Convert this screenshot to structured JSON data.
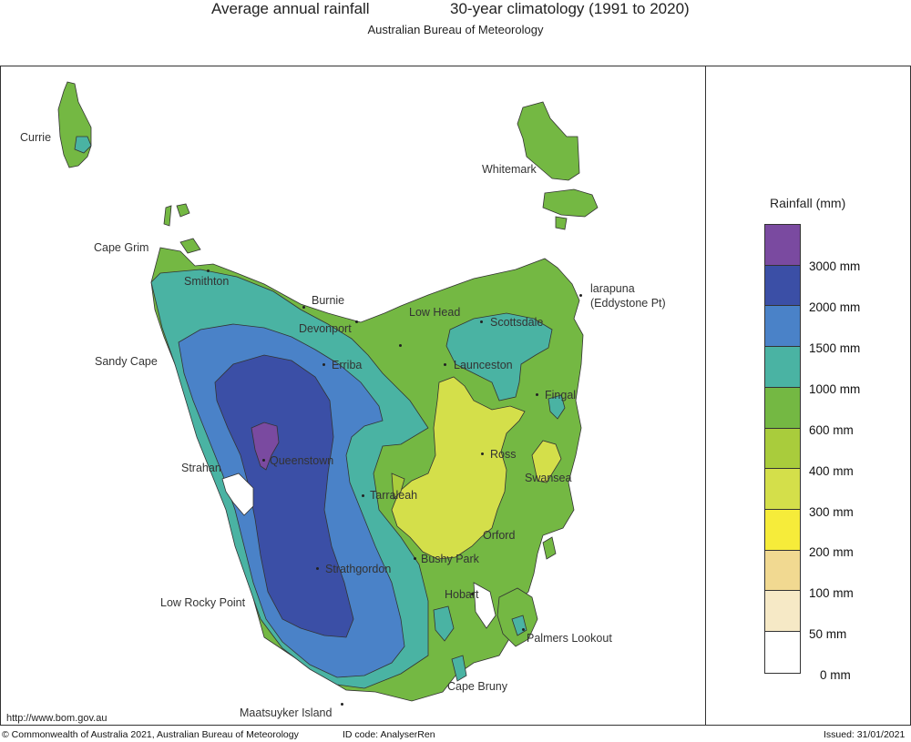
{
  "header": {
    "title": "Average annual rainfall",
    "period": "30-year climatology (1991 to 2020)",
    "subtitle": "Australian Bureau of Meteorology"
  },
  "legend": {
    "title": "Rainfall (mm)",
    "bands": [
      {
        "label": "",
        "color": "#7a4aa0"
      },
      {
        "label": "3000 mm",
        "color": "#3b4fa6"
      },
      {
        "label": "2000 mm",
        "color": "#4a82c8"
      },
      {
        "label": "1500 mm",
        "color": "#4ab3a3"
      },
      {
        "label": "1000 mm",
        "color": "#74b843"
      },
      {
        "label": "600 mm",
        "color": "#a9cc3c"
      },
      {
        "label": "400 mm",
        "color": "#d4df4a"
      },
      {
        "label": "300 mm",
        "color": "#f6ec3a"
      },
      {
        "label": "200 mm",
        "color": "#f1d991"
      },
      {
        "label": "100 mm",
        "color": "#f6e9c6"
      },
      {
        "label": "50 mm",
        "color": "#ffffff"
      }
    ],
    "bottom_label": "0 mm"
  },
  "places": [
    {
      "id": "currie",
      "name": "Currie"
    },
    {
      "id": "whitemark",
      "name": "Whitemark"
    },
    {
      "id": "cape-grim",
      "name": "Cape Grim"
    },
    {
      "id": "smithton",
      "name": "Smithton"
    },
    {
      "id": "burnie",
      "name": "Burnie"
    },
    {
      "id": "devonport",
      "name": "Devonport"
    },
    {
      "id": "low-head",
      "name": "Low Head"
    },
    {
      "id": "scottsdale",
      "name": "Scottsdale"
    },
    {
      "id": "larapuna",
      "name": "larapuna"
    },
    {
      "id": "eddystone",
      "name": "(Eddystone Pt)"
    },
    {
      "id": "sandy-cape",
      "name": "Sandy Cape"
    },
    {
      "id": "erriba",
      "name": "Erriba"
    },
    {
      "id": "launceston",
      "name": "Launceston"
    },
    {
      "id": "fingal",
      "name": "Fingal"
    },
    {
      "id": "strahan",
      "name": "Strahan"
    },
    {
      "id": "queenstown",
      "name": "Queenstown"
    },
    {
      "id": "ross",
      "name": "Ross"
    },
    {
      "id": "swansea",
      "name": "Swansea"
    },
    {
      "id": "tarraleah",
      "name": "Tarraleah"
    },
    {
      "id": "orford",
      "name": "Orford"
    },
    {
      "id": "bushy-park",
      "name": "Bushy Park"
    },
    {
      "id": "strathgordon",
      "name": "Strathgordon"
    },
    {
      "id": "low-rocky-point",
      "name": "Low Rocky Point"
    },
    {
      "id": "hobart",
      "name": "Hobart"
    },
    {
      "id": "palmers-lookout",
      "name": "Palmers Lookout"
    },
    {
      "id": "cape-bruny",
      "name": "Cape Bruny"
    },
    {
      "id": "maatsuyker",
      "name": "Maatsuyker Island"
    }
  ],
  "map": {
    "url": "http://www.bom.gov.au"
  },
  "footer": {
    "copyright_symbol": "©",
    "copyright": "Commonwealth of Australia 2021, Australian Bureau of Meteorology",
    "id_code": "ID code: AnalyserRen",
    "issued": "Issued: 31/01/2021"
  }
}
